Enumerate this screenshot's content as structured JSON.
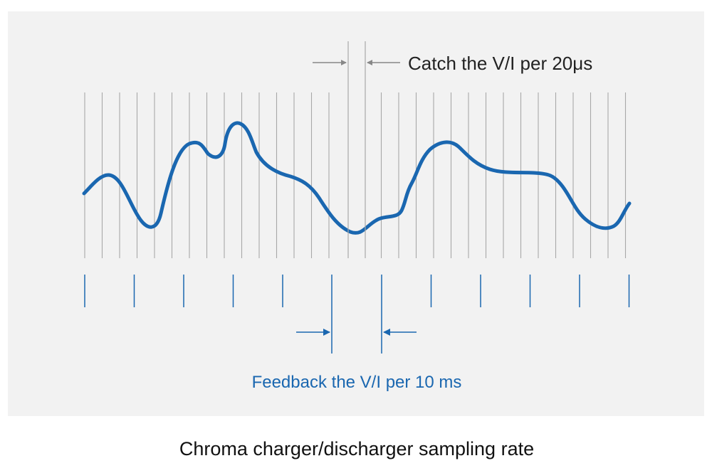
{
  "panel": {
    "background": "#f2f2f2"
  },
  "colors": {
    "wave": "#1a67b0",
    "accent_blue": "#1a67b0",
    "sample_line": "#a8a8a8",
    "top_arrow": "#888888",
    "text_dark": "#222222"
  },
  "annotations": {
    "top_label": "Catch the V/I per 20μs",
    "bottom_label": "Feedback the V/I per 10 ms"
  },
  "caption": "Chroma charger/discharger sampling rate",
  "icons": {
    "top_left_arrow": "arrow-right-icon",
    "top_right_arrow": "arrow-left-icon",
    "bottom_left_arrow": "arrow-right-icon",
    "bottom_right_arrow": "arrow-left-icon"
  }
}
